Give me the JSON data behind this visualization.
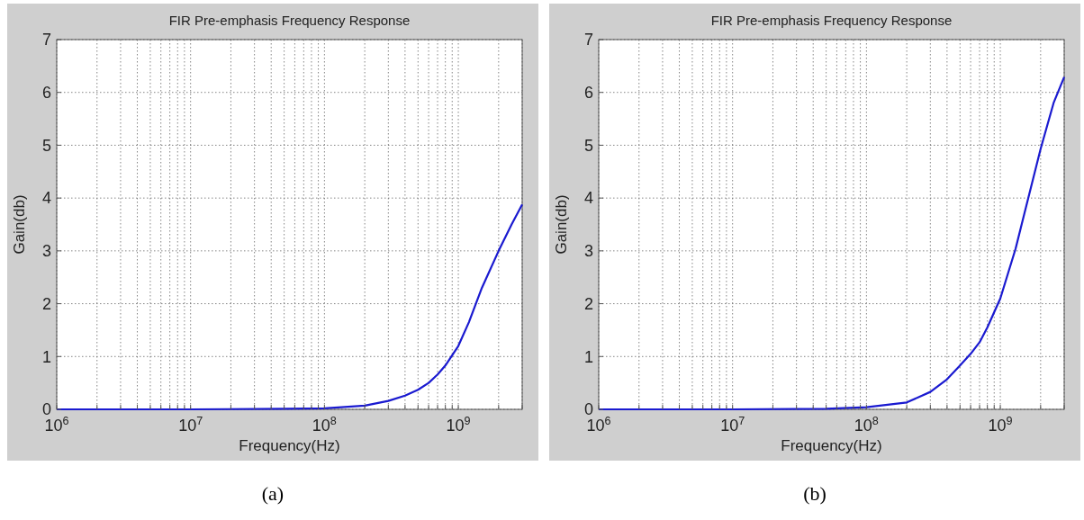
{
  "chart_data": [
    {
      "type": "line",
      "title": "FIR Pre-emphasis Frequency Response",
      "xlabel": "Frequency(Hz)",
      "ylabel": "Gain(db)",
      "annotations": [
        "(a)"
      ],
      "log": "x",
      "grid": true,
      "line_style": "solid",
      "marker": "none",
      "xlim": [
        1000000,
        3000000000
      ],
      "ylim": [
        0,
        7
      ],
      "yticks": [
        0,
        1,
        2,
        3,
        4,
        5,
        6,
        7
      ],
      "xticks": [
        {
          "value": 1000000,
          "label": "10$^{6}$"
        },
        {
          "value": 2000000,
          "label": null
        },
        {
          "value": 3000000,
          "label": null
        },
        {
          "value": 4000000,
          "label": null
        },
        {
          "value": 5000000,
          "label": null
        },
        {
          "value": 6000000,
          "label": null
        },
        {
          "value": 7000000,
          "label": null
        },
        {
          "value": 8000000,
          "label": null
        },
        {
          "value": 9000000,
          "label": null
        },
        {
          "value": 10000000,
          "label": "10$^{7}$"
        },
        {
          "value": 20000000,
          "label": null
        },
        {
          "value": 30000000,
          "label": null
        },
        {
          "value": 40000000,
          "label": null
        },
        {
          "value": 50000000,
          "label": null
        },
        {
          "value": 60000000,
          "label": null
        },
        {
          "value": 70000000,
          "label": null
        },
        {
          "value": 80000000,
          "label": null
        },
        {
          "value": 90000000,
          "label": null
        },
        {
          "value": 100000000,
          "label": "10$^{8}$"
        },
        {
          "value": 200000000,
          "label": null
        },
        {
          "value": 300000000,
          "label": null
        },
        {
          "value": 400000000,
          "label": null
        },
        {
          "value": 500000000,
          "label": null
        },
        {
          "value": 600000000,
          "label": null
        },
        {
          "value": 700000000,
          "label": null
        },
        {
          "value": 800000000,
          "label": null
        },
        {
          "value": 900000000,
          "label": null
        },
        {
          "value": 1000000000,
          "label": "10$^{9}$"
        },
        {
          "value": 2000000000,
          "label": null
        },
        {
          "value": 3000000000,
          "label": null
        }
      ],
      "x": [
        1000000,
        10000000,
        50000000,
        100000000,
        200000000,
        300000000,
        400000000,
        500000000,
        600000000,
        700000000,
        800000000,
        1000000000,
        1200000000,
        1500000000,
        2000000000,
        2500000000,
        3000000000
      ],
      "series": [
        {
          "color": "#1a1ad0",
          "values": [
            0,
            0,
            0.01,
            0.02,
            0.07,
            0.16,
            0.26,
            0.37,
            0.5,
            0.66,
            0.83,
            1.2,
            1.65,
            2.3,
            3.0,
            3.5,
            3.88
          ]
        }
      ]
    },
    {
      "type": "line",
      "title": "FIR Pre-emphasis Frequency Response",
      "xlabel": "Frequency(Hz)",
      "ylabel": "Gain(db)",
      "annotations": [
        "(b)"
      ],
      "log": "x",
      "grid": true,
      "line_style": "solid",
      "marker": "none",
      "xlim": [
        1000000,
        3000000000
      ],
      "ylim": [
        0,
        7
      ],
      "yticks": [
        0,
        1,
        2,
        3,
        4,
        5,
        6,
        7
      ],
      "xticks": [
        {
          "value": 1000000,
          "label": "10$^{6}$"
        },
        {
          "value": 2000000,
          "label": null
        },
        {
          "value": 3000000,
          "label": null
        },
        {
          "value": 4000000,
          "label": null
        },
        {
          "value": 5000000,
          "label": null
        },
        {
          "value": 6000000,
          "label": null
        },
        {
          "value": 7000000,
          "label": null
        },
        {
          "value": 8000000,
          "label": null
        },
        {
          "value": 9000000,
          "label": null
        },
        {
          "value": 10000000,
          "label": "10$^{7}$"
        },
        {
          "value": 20000000,
          "label": null
        },
        {
          "value": 30000000,
          "label": null
        },
        {
          "value": 40000000,
          "label": null
        },
        {
          "value": 50000000,
          "label": null
        },
        {
          "value": 60000000,
          "label": null
        },
        {
          "value": 70000000,
          "label": null
        },
        {
          "value": 80000000,
          "label": null
        },
        {
          "value": 90000000,
          "label": null
        },
        {
          "value": 100000000,
          "label": "10$^{8}$"
        },
        {
          "value": 200000000,
          "label": null
        },
        {
          "value": 300000000,
          "label": null
        },
        {
          "value": 400000000,
          "label": null
        },
        {
          "value": 500000000,
          "label": null
        },
        {
          "value": 600000000,
          "label": null
        },
        {
          "value": 700000000,
          "label": null
        },
        {
          "value": 800000000,
          "label": null
        },
        {
          "value": 900000000,
          "label": null
        },
        {
          "value": 1000000000,
          "label": "10$^{9}$"
        },
        {
          "value": 2000000000,
          "label": null
        },
        {
          "value": 3000000000,
          "label": null
        }
      ],
      "x": [
        1000000,
        10000000,
        50000000,
        100000000,
        200000000,
        300000000,
        400000000,
        500000000,
        600000000,
        700000000,
        800000000,
        1000000000,
        1300000000,
        1500000000,
        2000000000,
        2500000000,
        3000000000
      ],
      "series": [
        {
          "color": "#1a1ad0",
          "values": [
            0,
            0,
            0.01,
            0.04,
            0.13,
            0.33,
            0.57,
            0.83,
            1.05,
            1.27,
            1.55,
            2.1,
            3.04,
            3.67,
            4.93,
            5.8,
            6.29
          ]
        }
      ]
    }
  ]
}
